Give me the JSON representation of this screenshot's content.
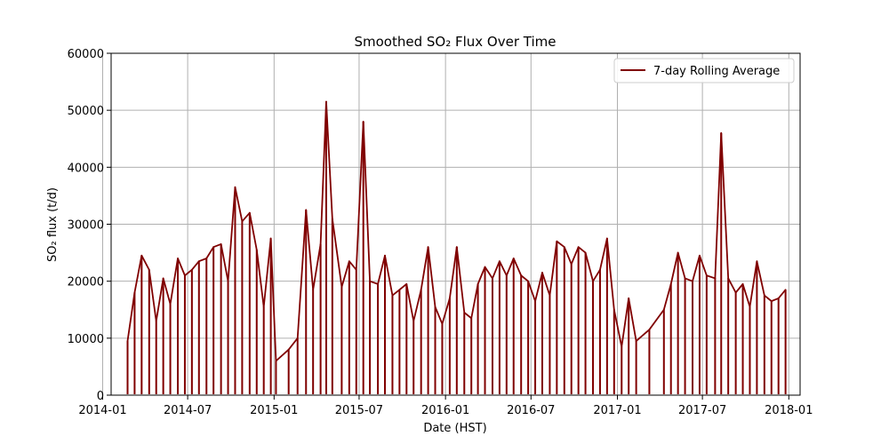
{
  "chart_data": {
    "type": "line",
    "title": "Smoothed SO₂ Flux Over Time",
    "xlabel": "Date (HST)",
    "ylabel": "SO₂ flux (t/d)",
    "xlim": [
      "2014-01-19",
      "2018-01-25"
    ],
    "ylim": [
      0,
      60000
    ],
    "x_ticks": [
      "2014-01",
      "2014-07",
      "2015-01",
      "2015-07",
      "2016-01",
      "2016-07",
      "2017-01",
      "2017-07",
      "2018-01"
    ],
    "y_ticks": [
      "0",
      "10000",
      "20000",
      "30000",
      "40000",
      "50000",
      "60000"
    ],
    "grid": true,
    "legend_position": "top-right",
    "line_color": "#800000",
    "series": [
      {
        "name": "7-day Rolling Average",
        "x": [
          "2014-02-23",
          "2014-03-10",
          "2014-03-25",
          "2014-04-10",
          "2014-04-25",
          "2014-05-10",
          "2014-05-25",
          "2014-06-10",
          "2014-06-25",
          "2014-07-10",
          "2014-07-25",
          "2014-08-10",
          "2014-08-25",
          "2014-09-10",
          "2014-09-25",
          "2014-10-10",
          "2014-10-25",
          "2014-11-10",
          "2014-11-25",
          "2014-12-10",
          "2014-12-25",
          "2015-01-05",
          "2015-02-01",
          "2015-02-20",
          "2015-03-10",
          "2015-03-25",
          "2015-04-10",
          "2015-04-22",
          "2015-05-05",
          "2015-05-25",
          "2015-06-10",
          "2015-06-25",
          "2015-07-10",
          "2015-07-24",
          "2015-08-10",
          "2015-08-25",
          "2015-09-10",
          "2015-09-25",
          "2015-10-10",
          "2015-10-25",
          "2015-11-10",
          "2015-11-25",
          "2015-12-10",
          "2015-12-25",
          "2016-01-10",
          "2016-01-25",
          "2016-02-10",
          "2016-02-25",
          "2016-03-10",
          "2016-03-25",
          "2016-04-10",
          "2016-04-25",
          "2016-05-10",
          "2016-05-25",
          "2016-06-10",
          "2016-06-25",
          "2016-07-10",
          "2016-07-25",
          "2016-08-10",
          "2016-08-25",
          "2016-09-10",
          "2016-09-25",
          "2016-10-10",
          "2016-10-25",
          "2016-11-10",
          "2016-11-25",
          "2016-12-10",
          "2016-12-25",
          "2017-01-10",
          "2017-01-25",
          "2017-02-10",
          "2017-03-10",
          "2017-04-10",
          "2017-04-25",
          "2017-05-10",
          "2017-05-25",
          "2017-06-10",
          "2017-06-25",
          "2017-07-10",
          "2017-07-28",
          "2017-08-10",
          "2017-08-25",
          "2017-09-10",
          "2017-09-25",
          "2017-10-10",
          "2017-10-25",
          "2017-11-10",
          "2017-11-25",
          "2017-12-10",
          "2017-12-25"
        ],
        "y": [
          9500,
          18000,
          24500,
          22000,
          13000,
          20500,
          16000,
          24000,
          21000,
          22000,
          23500,
          24000,
          26000,
          26500,
          20000,
          36500,
          30500,
          32000,
          25500,
          15500,
          27500,
          6000,
          8000,
          10000,
          32500,
          18500,
          26500,
          51500,
          31000,
          19000,
          23500,
          22000,
          48000,
          20000,
          19500,
          24500,
          17500,
          18500,
          19500,
          13000,
          18500,
          26000,
          15500,
          12500,
          17000,
          26000,
          14500,
          13500,
          19500,
          22500,
          20500,
          23500,
          21000,
          24000,
          21000,
          20000,
          16500,
          21500,
          17500,
          27000,
          26000,
          23000,
          26000,
          25000,
          20000,
          22000,
          27500,
          15000,
          8500,
          17000,
          9500,
          11500,
          15000,
          19500,
          25000,
          20500,
          20000,
          24500,
          21000,
          20500,
          46000,
          20500,
          18000,
          19500,
          15500,
          23500,
          17500,
          16500,
          17000,
          18500
        ]
      }
    ]
  }
}
